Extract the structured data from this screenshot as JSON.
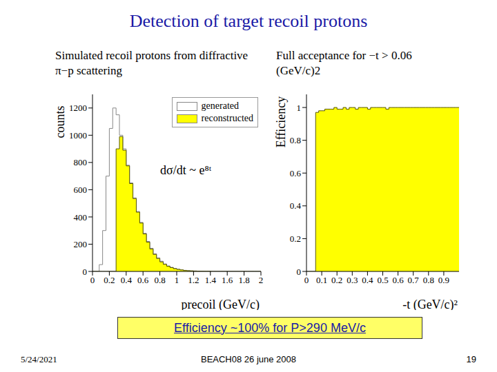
{
  "title": "Detection of target recoil protons",
  "left_caption": "Simulated recoil protons from diffractive π−p scattering",
  "right_caption": "Full acceptance for −t > 0.06 (GeV/c)2",
  "highlight": "Efficiency ~100% for P>290 MeV/c",
  "footer": {
    "date": "5/24/2021",
    "event": "BEACH08 26 june 2008",
    "page": "19"
  },
  "chart_data": [
    {
      "type": "histogram",
      "x_label": "precoil (GeV/c)",
      "y_label": "counts",
      "annotation": "dσ/dt ~ e⁸ᵗ",
      "legend": "upper right",
      "bins": [
        0,
        0.04,
        0.08,
        0.12,
        0.16,
        0.2,
        0.24,
        0.28,
        0.32,
        0.36,
        0.4,
        0.44,
        0.48,
        0.52,
        0.56,
        0.6,
        0.64,
        0.68,
        0.72,
        0.76,
        0.8,
        0.84,
        0.88,
        0.92,
        0.96,
        1,
        1.04,
        1.08,
        1.12,
        1.16,
        1.2,
        1.24,
        1.28,
        1.32,
        1.36,
        1.4,
        1.44,
        1.48,
        1.52,
        1.56,
        1.6,
        1.64,
        1.68,
        1.72,
        1.76,
        1.8,
        1.84,
        1.88,
        1.92,
        1.96,
        2
      ],
      "series": [
        {
          "name": "generated",
          "color": "#ffffff",
          "values": [
            0,
            0,
            50,
            300,
            700,
            1050,
            1200,
            1150,
            1000,
            900,
            780,
            650,
            540,
            440,
            360,
            280,
            220,
            170,
            130,
            100,
            75,
            55,
            40,
            30,
            22,
            16,
            12,
            8,
            6,
            4,
            3,
            2,
            2,
            1,
            1,
            0,
            0,
            0,
            0,
            0,
            0,
            0,
            0,
            0,
            0,
            0,
            0,
            0,
            0,
            0
          ]
        },
        {
          "name": "reconstructed",
          "color": "#ffff00",
          "values": [
            0,
            0,
            0,
            0,
            0,
            0,
            0,
            900,
            990,
            890,
            775,
            645,
            535,
            435,
            355,
            275,
            215,
            165,
            125,
            95,
            70,
            52,
            38,
            28,
            20,
            15,
            11,
            7,
            5,
            4,
            3,
            2,
            1,
            1,
            1,
            0,
            0,
            0,
            0,
            0,
            0,
            0,
            0,
            0,
            0,
            0,
            0,
            0,
            0,
            0
          ]
        }
      ],
      "xlim": [
        0,
        2
      ],
      "xticks": [
        0,
        0.2,
        0.4,
        0.6,
        0.8,
        1,
        1.2,
        1.4,
        1.6,
        1.8,
        2
      ],
      "ylim": [
        0,
        1300
      ],
      "yticks": [
        0,
        200,
        400,
        600,
        800,
        1000,
        1200
      ]
    },
    {
      "type": "histogram",
      "x_label": "-t (GeV/c)²",
      "y_label": "Efficiency",
      "color": "#ffff00",
      "bins": [
        0,
        0.02,
        0.04,
        0.06,
        0.08,
        0.1,
        0.12,
        0.14,
        0.16,
        0.18,
        0.2,
        0.22,
        0.24,
        0.26,
        0.28,
        0.3,
        0.32,
        0.34,
        0.36,
        0.38,
        0.4,
        0.42,
        0.44,
        0.46,
        0.48,
        0.5,
        0.52,
        0.54,
        0.56,
        0.58,
        0.6,
        0.62,
        0.64,
        0.66,
        0.68,
        0.7,
        0.72,
        0.74,
        0.76,
        0.78,
        0.8,
        0.82,
        0.84,
        0.86,
        0.88,
        0.9,
        0.92,
        0.94,
        0.96,
        0.98,
        1
      ],
      "values": [
        0,
        0,
        0,
        0.97,
        0.98,
        0.98,
        0.99,
        0.99,
        0.99,
        1.0,
        0.99,
        0.99,
        1.0,
        0.99,
        1.0,
        1.0,
        0.99,
        1.0,
        1.0,
        1.0,
        0.99,
        1.0,
        1.0,
        1.0,
        1.0,
        1.0,
        0.99,
        1.0,
        1.0,
        1.0,
        1.0,
        1.0,
        1.0,
        1.0,
        1.0,
        1.0,
        1.0,
        1.0,
        1.0,
        1.0,
        1.0,
        1.0,
        1.0,
        1.0,
        1.0,
        1.0,
        1.0,
        1.0,
        1.0,
        1.0
      ],
      "xlim": [
        0,
        1
      ],
      "xticks": [
        0,
        0.1,
        0.2,
        0.3,
        0.4,
        0.5,
        0.6,
        0.7,
        0.8,
        0.9
      ],
      "ylim": [
        0,
        1.08
      ],
      "yticks": [
        0,
        0.2,
        0.4,
        0.6,
        0.8,
        1
      ]
    }
  ]
}
